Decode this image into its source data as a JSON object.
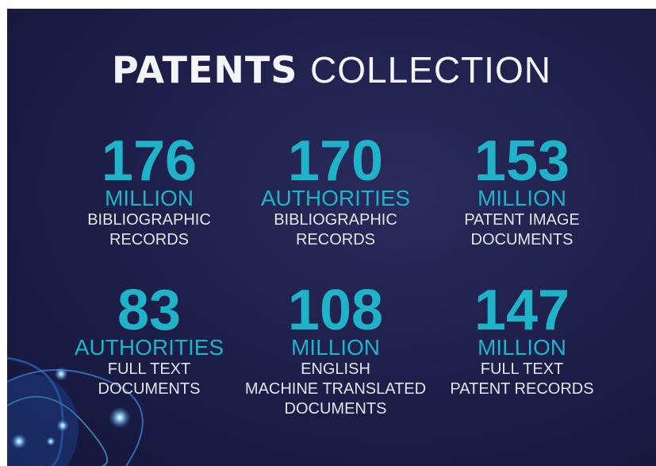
{
  "title": {
    "bold": "PATENTS",
    "light": "COLLECTION"
  },
  "stats": [
    {
      "number": 176,
      "unit": "MILLION",
      "lines": [
        "BIBLIOGRAPHIC",
        "RECORDS"
      ]
    },
    {
      "number": 170,
      "unit": "AUTHORITIES",
      "lines": [
        "BIBLIOGRAPHIC",
        "RECORDS"
      ]
    },
    {
      "number": 153,
      "unit": "MILLION",
      "lines": [
        "PATENT IMAGE",
        "DOCUMENTS"
      ]
    },
    {
      "number": 83,
      "unit": "AUTHORITIES",
      "lines": [
        "FULL TEXT",
        "DOCUMENTS"
      ]
    },
    {
      "number": 108,
      "unit": "MILLION",
      "lines": [
        "ENGLISH",
        "MACHINE TRANSLATED",
        "DOCUMENTS"
      ]
    },
    {
      "number": 147,
      "unit": "MILLION",
      "lines": [
        "FULL TEXT",
        "PATENT RECORDS"
      ]
    }
  ]
}
